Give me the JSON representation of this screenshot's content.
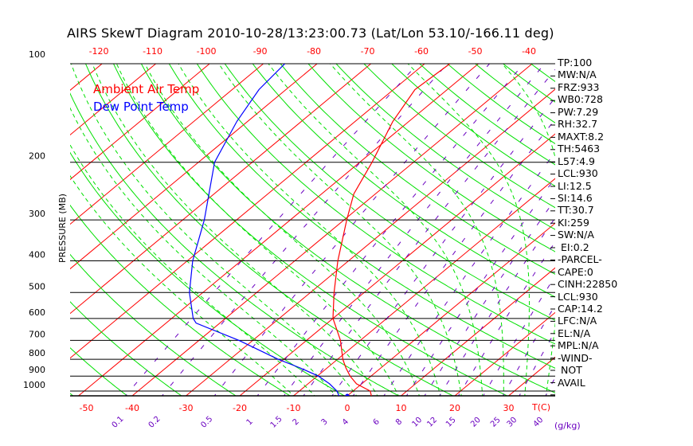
{
  "title": "AIRS SkewT Diagram 2010-10-28/13:23:00.73 (Lat/Lon 53.10/-166.11 deg)",
  "stats": [
    "TP:100",
    "MW:N/A",
    "FRZ:933",
    "WB0:728",
    "PW:7.29",
    "RH:32.7",
    "MAXT:8.2",
    "TH:5463",
    "L57:4.9",
    "LCL:930",
    "LI:12.5",
    "SI:14.6",
    "TT:30.7",
    "KI:259",
    "SW:N/A",
    "EI:0.2",
    "-PARCEL-",
    "CAPE:0",
    "CINH:22850",
    "LCL:930",
    "CAP:14.2",
    "LFC:N/A",
    "EL:N/A",
    "MPL:N/A",
    "-WIND-",
    "NOT",
    "AVAIL"
  ],
  "colors": {
    "temp": "#ff0000",
    "dew": "#0000ff",
    "dry_adiabat": "#00e000",
    "moist_adiabat": "#00e000",
    "mixing_ratio": "#6a00c0",
    "isobar": "#000000"
  },
  "chart_data": {
    "type": "line",
    "title": "AIRS SkewT Diagram 2010-10-28/13:23:00.73 (Lat/Lon 53.10/-166.11 deg)",
    "ylabel": "PRESSURE (MB)",
    "xlabel": "T(C)",
    "mixing_ratio_unit": "(g/kg)",
    "ylim": [
      1040,
      100
    ],
    "pressure_ticks": [
      100,
      200,
      300,
      400,
      500,
      600,
      700,
      800,
      900,
      1000
    ],
    "top_temp_ticks": [
      -120,
      -110,
      -100,
      -90,
      -80,
      -70,
      -60,
      -50,
      -40
    ],
    "bottom_temp_ticks": [
      -50,
      -40,
      -30,
      -20,
      -10,
      0,
      10,
      20,
      30
    ],
    "mixing_ratio_ticks": [
      0.1,
      0.2,
      0.5,
      1,
      1.5,
      2,
      3,
      4,
      6,
      8,
      10,
      12,
      15,
      20,
      25,
      30,
      40
    ],
    "legend": [
      {
        "label": "Ambient Air Temp",
        "color": "#ff0000"
      },
      {
        "label": "Dew Point Temp",
        "color": "#0000ff"
      }
    ],
    "series": [
      {
        "name": "Ambient Air Temp",
        "pressure": [
          1040,
          1000,
          950,
          900,
          850,
          800,
          700,
          600,
          500,
          400,
          300,
          250,
          200,
          150,
          120,
          100
        ],
        "values": [
          4.7,
          3.2,
          -1,
          -3.9,
          -6.5,
          -9,
          -13.7,
          -20,
          -25.6,
          -32,
          -39.5,
          -44,
          -47.7,
          -53,
          -56,
          -55.3
        ]
      },
      {
        "name": "Dew Point Temp",
        "pressure": [
          1040,
          1000,
          950,
          900,
          850,
          800,
          700,
          620,
          600,
          500,
          400,
          300,
          200,
          150,
          120,
          100
        ],
        "values": [
          -1.3,
          -3,
          -6,
          -9.8,
          -15,
          -21,
          -32.6,
          -44.4,
          -46,
          -52.5,
          -59,
          -66,
          -77,
          -82,
          -85,
          -86
        ]
      }
    ]
  }
}
